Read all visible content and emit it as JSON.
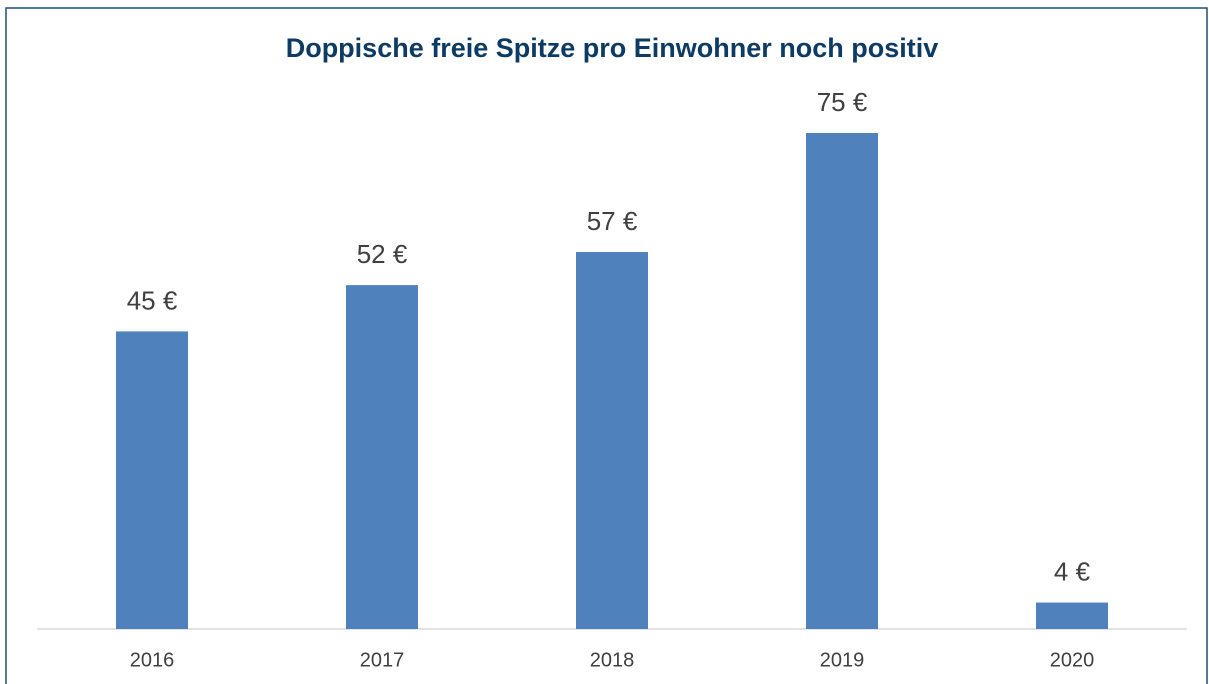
{
  "chart_data": {
    "type": "bar",
    "title": "Doppische freie Spitze pro Einwohner noch positiv",
    "categories": [
      "2016",
      "2017",
      "2018",
      "2019",
      "2020"
    ],
    "values": [
      45,
      52,
      57,
      75,
      4
    ],
    "value_labels": [
      "45 €",
      "52 €",
      "57 €",
      "75 €",
      "4 €"
    ],
    "color": "#4f81bd"
  }
}
